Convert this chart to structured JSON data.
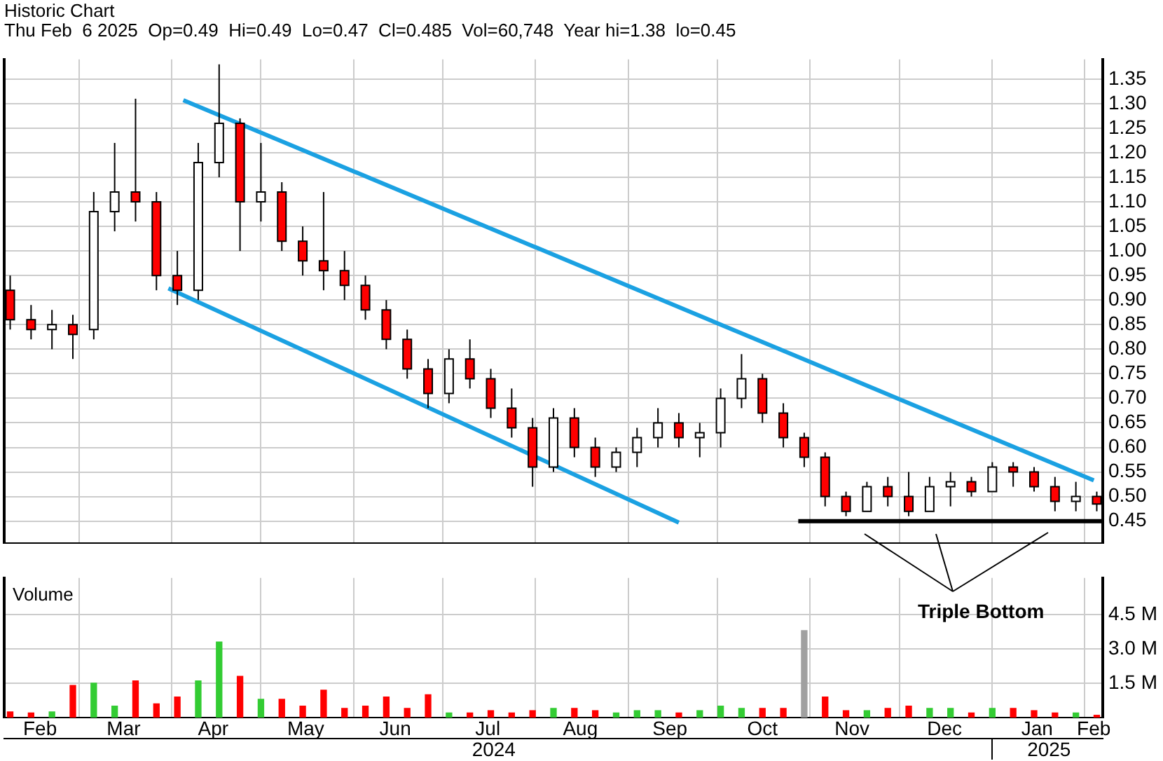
{
  "chart_data": [
    {
      "type": "candlestick",
      "title": "Historic Chart",
      "subtitle": "Thu Feb  6 2025  Op=0.49  Hi=0.49  Lo=0.47  Cl=0.485  Vol=60,748  Year hi=1.38  lo=0.45",
      "x": [
        "2024-02-07",
        "2024-02-14",
        "2024-02-21",
        "2024-02-28",
        "2024-03-06",
        "2024-03-13",
        "2024-03-20",
        "2024-03-27",
        "2024-04-03",
        "2024-04-10",
        "2024-04-17",
        "2024-04-24",
        "2024-05-01",
        "2024-05-08",
        "2024-05-15",
        "2024-05-22",
        "2024-05-29",
        "2024-06-05",
        "2024-06-12",
        "2024-06-19",
        "2024-06-26",
        "2024-07-03",
        "2024-07-10",
        "2024-07-17",
        "2024-07-24",
        "2024-07-31",
        "2024-08-07",
        "2024-08-14",
        "2024-08-21",
        "2024-08-28",
        "2024-09-04",
        "2024-09-11",
        "2024-09-18",
        "2024-09-25",
        "2024-10-02",
        "2024-10-09",
        "2024-10-16",
        "2024-10-23",
        "2024-10-30",
        "2024-11-06",
        "2024-11-13",
        "2024-11-20",
        "2024-11-27",
        "2024-12-04",
        "2024-12-11",
        "2024-12-18",
        "2024-12-25",
        "2025-01-01",
        "2025-01-08",
        "2025-01-15",
        "2025-01-22",
        "2025-01-29",
        "2025-02-05"
      ],
      "ohlc": [
        [
          0.92,
          0.95,
          0.84,
          0.86
        ],
        [
          0.86,
          0.89,
          0.82,
          0.84
        ],
        [
          0.84,
          0.88,
          0.8,
          0.85
        ],
        [
          0.85,
          0.87,
          0.78,
          0.83
        ],
        [
          0.84,
          1.12,
          0.82,
          1.08
        ],
        [
          1.08,
          1.22,
          1.04,
          1.12
        ],
        [
          1.12,
          1.31,
          1.06,
          1.1
        ],
        [
          1.1,
          1.12,
          0.92,
          0.95
        ],
        [
          0.95,
          1.0,
          0.89,
          0.92
        ],
        [
          0.92,
          1.22,
          0.9,
          1.18
        ],
        [
          1.18,
          1.38,
          1.15,
          1.26
        ],
        [
          1.26,
          1.27,
          1.0,
          1.1
        ],
        [
          1.1,
          1.22,
          1.06,
          1.12
        ],
        [
          1.12,
          1.14,
          1.0,
          1.02
        ],
        [
          1.02,
          1.05,
          0.95,
          0.98
        ],
        [
          0.98,
          1.12,
          0.92,
          0.96
        ],
        [
          0.96,
          1.0,
          0.9,
          0.93
        ],
        [
          0.93,
          0.95,
          0.86,
          0.88
        ],
        [
          0.88,
          0.9,
          0.8,
          0.82
        ],
        [
          0.82,
          0.84,
          0.74,
          0.76
        ],
        [
          0.76,
          0.78,
          0.68,
          0.71
        ],
        [
          0.71,
          0.8,
          0.69,
          0.78
        ],
        [
          0.78,
          0.82,
          0.72,
          0.74
        ],
        [
          0.74,
          0.76,
          0.66,
          0.68
        ],
        [
          0.68,
          0.72,
          0.62,
          0.64
        ],
        [
          0.64,
          0.66,
          0.52,
          0.56
        ],
        [
          0.56,
          0.68,
          0.55,
          0.66
        ],
        [
          0.66,
          0.68,
          0.58,
          0.6
        ],
        [
          0.6,
          0.62,
          0.54,
          0.56
        ],
        [
          0.56,
          0.6,
          0.55,
          0.59
        ],
        [
          0.59,
          0.64,
          0.56,
          0.62
        ],
        [
          0.62,
          0.68,
          0.6,
          0.65
        ],
        [
          0.65,
          0.67,
          0.6,
          0.62
        ],
        [
          0.62,
          0.65,
          0.58,
          0.63
        ],
        [
          0.63,
          0.72,
          0.6,
          0.7
        ],
        [
          0.7,
          0.79,
          0.68,
          0.74
        ],
        [
          0.74,
          0.75,
          0.65,
          0.67
        ],
        [
          0.67,
          0.69,
          0.6,
          0.62
        ],
        [
          0.62,
          0.63,
          0.56,
          0.58
        ],
        [
          0.58,
          0.59,
          0.48,
          0.5
        ],
        [
          0.5,
          0.51,
          0.46,
          0.47
        ],
        [
          0.47,
          0.53,
          0.47,
          0.52
        ],
        [
          0.52,
          0.54,
          0.48,
          0.5
        ],
        [
          0.5,
          0.55,
          0.46,
          0.47
        ],
        [
          0.47,
          0.54,
          0.47,
          0.52
        ],
        [
          0.52,
          0.55,
          0.48,
          0.53
        ],
        [
          0.53,
          0.54,
          0.5,
          0.51
        ],
        [
          0.51,
          0.57,
          0.51,
          0.56
        ],
        [
          0.56,
          0.57,
          0.52,
          0.55
        ],
        [
          0.55,
          0.56,
          0.51,
          0.52
        ],
        [
          0.52,
          0.54,
          0.47,
          0.49
        ],
        [
          0.49,
          0.53,
          0.47,
          0.5
        ],
        [
          0.5,
          0.51,
          0.47,
          0.485
        ]
      ],
      "colors": [
        "#ff0000",
        "#ff0000",
        "#ffffff",
        "#ff0000",
        "#ffffff",
        "#ffffff",
        "#ff0000",
        "#ff0000",
        "#ff0000",
        "#ffffff",
        "#ffffff",
        "#ff0000",
        "#ffffff",
        "#ff0000",
        "#ff0000",
        "#ff0000",
        "#ff0000",
        "#ff0000",
        "#ff0000",
        "#ff0000",
        "#ff0000",
        "#ffffff",
        "#ff0000",
        "#ff0000",
        "#ff0000",
        "#ff0000",
        "#ffffff",
        "#ff0000",
        "#ff0000",
        "#ffffff",
        "#ffffff",
        "#ffffff",
        "#ff0000",
        "#ffffff",
        "#ffffff",
        "#ffffff",
        "#ff0000",
        "#ff0000",
        "#ff0000",
        "#ff0000",
        "#ff0000",
        "#ffffff",
        "#ff0000",
        "#ff0000",
        "#ffffff",
        "#ffffff",
        "#ff0000",
        "#ffffff",
        "#ff0000",
        "#ff0000",
        "#ff0000",
        "#ffffff",
        "#ff0000"
      ],
      "series": [
        {
          "type": "line",
          "color": "#1ba1e2",
          "x": [
            "2024-04-05",
            "2025-02-04"
          ],
          "values": [
            1.307,
            0.533
          ]
        },
        {
          "type": "line",
          "color": "#1ba1e2",
          "x": [
            "2024-03-31",
            "2024-09-18"
          ],
          "values": [
            0.924,
            0.447
          ]
        },
        {
          "type": "line",
          "color": "#000000",
          "x": [
            "2024-10-28",
            "2025-02-07"
          ],
          "values": [
            0.45,
            0.45
          ]
        }
      ],
      "xlim": [
        "2024-02-05",
        "2025-02-07"
      ],
      "xticks": [
        {
          "value": "2024-03-01",
          "label": null
        },
        {
          "value": "2024-04-01",
          "label": null
        },
        {
          "value": "2024-05-01",
          "label": null
        },
        {
          "value": "2024-06-01",
          "label": null
        },
        {
          "value": "2024-07-01",
          "label": null
        },
        {
          "value": "2024-08-01",
          "label": null
        },
        {
          "value": "2024-09-01",
          "label": null
        },
        {
          "value": "2024-10-01",
          "label": null
        },
        {
          "value": "2024-11-01",
          "label": null
        },
        {
          "value": "2024-12-01",
          "label": null
        },
        {
          "value": "2025-01-01",
          "label": null
        },
        {
          "value": "2025-02-01",
          "label": null
        }
      ],
      "ylim": [
        0.405,
        1.39
      ],
      "yticks": [
        {
          "value": 0.45,
          "label": "0.45"
        },
        {
          "value": 0.5,
          "label": "0.50"
        },
        {
          "value": 0.55,
          "label": "0.55"
        },
        {
          "value": 0.6,
          "label": "0.60"
        },
        {
          "value": 0.65,
          "label": "0.65"
        },
        {
          "value": 0.7,
          "label": "0.70"
        },
        {
          "value": 0.75,
          "label": "0.75"
        },
        {
          "value": 0.8,
          "label": "0.80"
        },
        {
          "value": 0.85,
          "label": "0.85"
        },
        {
          "value": 0.9,
          "label": "0.90"
        },
        {
          "value": 0.95,
          "label": "0.95"
        },
        {
          "value": 1.0,
          "label": "1.00"
        },
        {
          "value": 1.05,
          "label": "1.05"
        },
        {
          "value": 1.1,
          "label": "1.10"
        },
        {
          "value": 1.15,
          "label": "1.15"
        },
        {
          "value": 1.2,
          "label": "1.20"
        },
        {
          "value": 1.25,
          "label": "1.25"
        },
        {
          "value": 1.3,
          "label": "1.30"
        },
        {
          "value": 1.35,
          "label": "1.35"
        }
      ],
      "grid": true,
      "tick_labels": "y",
      "annotations": [
        "Triple Bottom"
      ]
    },
    {
      "type": "bar",
      "title": "Volume",
      "x": [
        "2024-02-07",
        "2024-02-14",
        "2024-02-21",
        "2024-02-28",
        "2024-03-06",
        "2024-03-13",
        "2024-03-20",
        "2024-03-27",
        "2024-04-03",
        "2024-04-10",
        "2024-04-17",
        "2024-04-24",
        "2024-05-01",
        "2024-05-08",
        "2024-05-15",
        "2024-05-22",
        "2024-05-29",
        "2024-06-05",
        "2024-06-12",
        "2024-06-19",
        "2024-06-26",
        "2024-07-03",
        "2024-07-10",
        "2024-07-17",
        "2024-07-24",
        "2024-07-31",
        "2024-08-07",
        "2024-08-14",
        "2024-08-21",
        "2024-08-28",
        "2024-09-04",
        "2024-09-11",
        "2024-09-18",
        "2024-09-25",
        "2024-10-02",
        "2024-10-09",
        "2024-10-16",
        "2024-10-23",
        "2024-10-30",
        "2024-11-06",
        "2024-11-13",
        "2024-11-20",
        "2024-11-27",
        "2024-12-04",
        "2024-12-11",
        "2024-12-18",
        "2024-12-25",
        "2025-01-01",
        "2025-01-08",
        "2025-01-15",
        "2025-01-22",
        "2025-01-29",
        "2025-02-05"
      ],
      "values": [
        0.25,
        0.2,
        0.25,
        1.4,
        1.5,
        0.5,
        1.6,
        0.6,
        0.9,
        1.6,
        3.3,
        1.8,
        0.8,
        0.8,
        0.5,
        1.2,
        0.4,
        0.5,
        0.9,
        0.4,
        1.0,
        0.2,
        0.2,
        0.3,
        0.2,
        0.3,
        0.4,
        0.4,
        0.3,
        0.2,
        0.3,
        0.3,
        0.2,
        0.3,
        0.5,
        0.4,
        0.4,
        0.4,
        3.8,
        0.9,
        0.3,
        0.3,
        0.4,
        0.5,
        0.4,
        0.4,
        0.2,
        0.4,
        0.4,
        0.3,
        0.2,
        0.2,
        0.1
      ],
      "colors": [
        "#ff0000",
        "#ff0000",
        "#33cc33",
        "#ff0000",
        "#33cc33",
        "#33cc33",
        "#ff0000",
        "#ff0000",
        "#ff0000",
        "#33cc33",
        "#33cc33",
        "#ff0000",
        "#33cc33",
        "#ff0000",
        "#ff0000",
        "#ff0000",
        "#ff0000",
        "#ff0000",
        "#ff0000",
        "#ff0000",
        "#ff0000",
        "#33cc33",
        "#ff0000",
        "#ff0000",
        "#ff0000",
        "#ff0000",
        "#33cc33",
        "#ff0000",
        "#ff0000",
        "#33cc33",
        "#33cc33",
        "#33cc33",
        "#ff0000",
        "#33cc33",
        "#33cc33",
        "#33cc33",
        "#ff0000",
        "#ff0000",
        "#a0a0a0",
        "#ff0000",
        "#ff0000",
        "#33cc33",
        "#ff0000",
        "#ff0000",
        "#33cc33",
        "#33cc33",
        "#ff0000",
        "#33cc33",
        "#ff0000",
        "#ff0000",
        "#ff0000",
        "#33cc33",
        "#ff0000"
      ],
      "xlim": [
        "2024-02-05",
        "2025-02-07"
      ],
      "xticks": [
        {
          "value": "2024-02-17",
          "label": "Feb"
        },
        {
          "value": "2024-03-01",
          "label": null
        },
        {
          "value": "2024-03-16",
          "label": "Mar"
        },
        {
          "value": "2024-04-01",
          "label": null
        },
        {
          "value": "2024-04-15",
          "label": "Apr"
        },
        {
          "value": "2024-05-01",
          "label": null
        },
        {
          "value": "2024-05-16",
          "label": "May"
        },
        {
          "value": "2024-06-01",
          "label": null
        },
        {
          "value": "2024-06-15",
          "label": "Jun"
        },
        {
          "value": "2024-07-01",
          "label": null
        },
        {
          "value": "2024-07-16",
          "label": "Jul"
        },
        {
          "value": "2024-08-01",
          "label": null
        },
        {
          "value": "2024-08-16",
          "label": "Aug"
        },
        {
          "value": "2024-09-01",
          "label": null
        },
        {
          "value": "2024-09-15",
          "label": "Sep"
        },
        {
          "value": "2024-10-01",
          "label": null
        },
        {
          "value": "2024-10-16",
          "label": "Oct"
        },
        {
          "value": "2024-11-01",
          "label": null
        },
        {
          "value": "2024-11-15",
          "label": "Nov"
        },
        {
          "value": "2024-12-01",
          "label": null
        },
        {
          "value": "2024-12-16",
          "label": "Dec"
        },
        {
          "value": "2025-01-01",
          "label": null
        },
        {
          "value": "2025-01-16",
          "label": "Jan"
        },
        {
          "value": "2025-02-01",
          "label": null
        },
        {
          "value": "2025-02-04",
          "label": "Feb"
        }
      ],
      "x2lim": [
        "2024-02-05",
        "2025-02-07"
      ],
      "x2ticks": [
        {
          "value": "2024-07-18",
          "label": "2024"
        },
        {
          "value": "2025-01-01",
          "label": null
        },
        {
          "value": "2025-01-20",
          "label": "2025"
        }
      ],
      "ylim": [
        0,
        6.1
      ],
      "yticks": [
        {
          "value": 1.5,
          "label": "1.5 M"
        },
        {
          "value": 3.0,
          "label": "3.0 M"
        },
        {
          "value": 4.5,
          "label": "4.5 M"
        }
      ],
      "grid": true
    }
  ]
}
